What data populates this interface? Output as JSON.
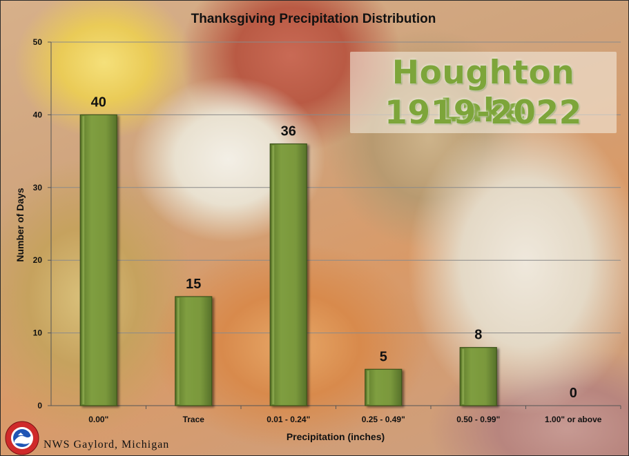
{
  "chart_data": {
    "type": "bar",
    "title": "Thanksgiving Precipitation Distribution",
    "xlabel": "Precipitation (inches)",
    "ylabel": "Number of Days",
    "categories": [
      "0.00\"",
      "Trace",
      "0.01 - 0.24\"",
      "0.25 - 0.49\"",
      "0.50 - 0.99\"",
      "1.00\" or above"
    ],
    "values": [
      40,
      15,
      36,
      5,
      8,
      0
    ],
    "ylim": [
      0,
      50
    ],
    "yticks": [
      "0",
      "10",
      "20",
      "30",
      "40",
      "50"
    ],
    "grid": true,
    "bar_color": "#76933c"
  },
  "overlay": {
    "location_line1": "Houghton Lake",
    "location_line2": "1919-2022",
    "accent_color": "#7da53a"
  },
  "footer": {
    "credit": "NWS Gaylord, Michigan",
    "logo_icon": "nws-logo-icon"
  }
}
